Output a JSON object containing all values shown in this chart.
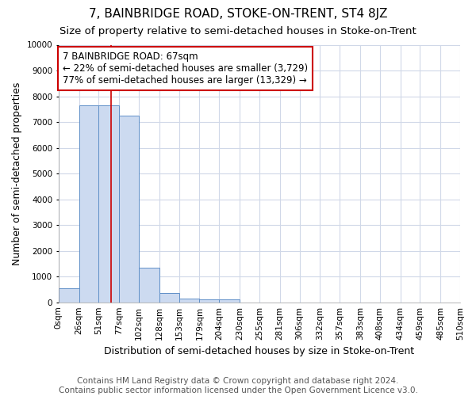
{
  "title": "7, BAINBRIDGE ROAD, STOKE-ON-TRENT, ST4 8JZ",
  "subtitle": "Size of property relative to semi-detached houses in Stoke-on-Trent",
  "xlabel": "Distribution of semi-detached houses by size in Stoke-on-Trent",
  "ylabel": "Number of semi-detached properties",
  "footer_line1": "Contains HM Land Registry data © Crown copyright and database right 2024.",
  "footer_line2": "Contains public sector information licensed under the Open Government Licence v3.0.",
  "bin_edges": [
    0,
    26,
    51,
    77,
    102,
    128,
    153,
    179,
    204,
    230,
    255,
    281,
    306,
    332,
    357,
    383,
    408,
    434,
    459,
    485,
    510
  ],
  "bin_labels": [
    "0sqm",
    "26sqm",
    "51sqm",
    "77sqm",
    "102sqm",
    "128sqm",
    "153sqm",
    "179sqm",
    "204sqm",
    "230sqm",
    "255sqm",
    "281sqm",
    "306sqm",
    "332sqm",
    "357sqm",
    "383sqm",
    "408sqm",
    "434sqm",
    "459sqm",
    "485sqm",
    "510sqm"
  ],
  "bar_heights": [
    550,
    7650,
    7650,
    7250,
    1350,
    350,
    150,
    120,
    100,
    0,
    0,
    0,
    0,
    0,
    0,
    0,
    0,
    0,
    0,
    0
  ],
  "bar_color": "#ccdaf0",
  "bar_edge_color": "#6090c8",
  "property_size": 67,
  "property_label": "7 BAINBRIDGE ROAD: 67sqm",
  "pct_smaller": 22,
  "count_smaller": 3729,
  "pct_larger": 77,
  "count_larger": 13329,
  "annotation_box_color": "#ffffff",
  "annotation_box_edge_color": "#cc0000",
  "vline_color": "#cc0000",
  "ylim": [
    0,
    10000
  ],
  "yticks": [
    0,
    1000,
    2000,
    3000,
    4000,
    5000,
    6000,
    7000,
    8000,
    9000,
    10000
  ],
  "bg_color": "#ffffff",
  "plot_bg_color": "#ffffff",
  "grid_color": "#d0d8e8",
  "title_fontsize": 11,
  "subtitle_fontsize": 9.5,
  "axis_label_fontsize": 9,
  "tick_fontsize": 7.5,
  "annotation_fontsize": 8.5,
  "footer_fontsize": 7.5
}
